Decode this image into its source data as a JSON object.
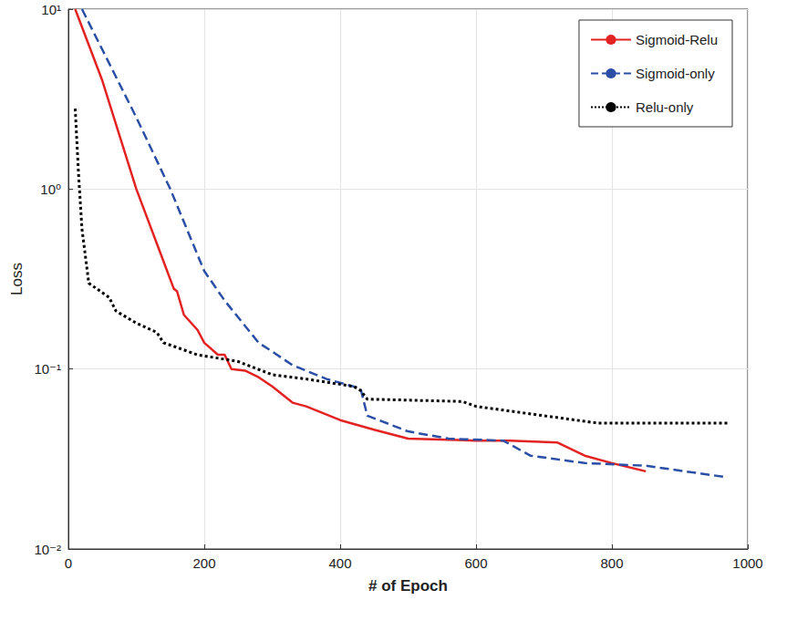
{
  "chart_data": {
    "type": "line",
    "x_label": "# of Epoch",
    "y_label": "Loss",
    "log": "y",
    "grid": true,
    "legend": "upper right",
    "xlim": [
      0,
      1000
    ],
    "xticks": [
      0,
      200,
      400,
      600,
      800,
      1000
    ],
    "ylim": [
      0.01,
      10
    ],
    "yticks": [
      {
        "value": 0.01,
        "label": "10⁻²"
      },
      {
        "value": 0.1,
        "label": "10⁻¹"
      },
      {
        "value": 1,
        "label": "10⁰"
      },
      {
        "value": 10,
        "label": "10¹"
      }
    ],
    "series": [
      {
        "name": "Sigmoid-Relu",
        "color": "#e32222",
        "line_style": "solid",
        "x": [
          10,
          50,
          100,
          130,
          155,
          160,
          170,
          190,
          200,
          220,
          230,
          240,
          260,
          280,
          300,
          330,
          350,
          400,
          450,
          500,
          600,
          650,
          720,
          760,
          800,
          850
        ],
        "values": [
          10,
          4,
          1.0,
          0.5,
          0.28,
          0.27,
          0.2,
          0.165,
          0.14,
          0.12,
          0.12,
          0.1,
          0.098,
          0.09,
          0.08,
          0.065,
          0.062,
          0.052,
          0.046,
          0.041,
          0.04,
          0.04,
          0.039,
          0.033,
          0.03,
          0.027
        ]
      },
      {
        "name": "Sigmoid-only",
        "color": "#2b4fa6",
        "line_style": "dashed",
        "x": [
          20,
          60,
          100,
          150,
          200,
          230,
          280,
          300,
          330,
          380,
          430,
          440,
          500,
          560,
          640,
          680,
          760,
          850,
          970
        ],
        "values": [
          10,
          5,
          2.5,
          1.0,
          0.35,
          0.24,
          0.14,
          0.125,
          0.105,
          0.088,
          0.078,
          0.055,
          0.045,
          0.041,
          0.04,
          0.033,
          0.03,
          0.029,
          0.025
        ]
      },
      {
        "name": "Relu-only",
        "color": "#000000",
        "line_style": "dotted",
        "x": [
          10,
          15,
          20,
          30,
          60,
          70,
          100,
          130,
          140,
          190,
          250,
          300,
          350,
          420,
          430,
          440,
          580,
          600,
          700,
          780,
          970
        ],
        "values": [
          2.8,
          1.2,
          0.6,
          0.3,
          0.25,
          0.21,
          0.18,
          0.16,
          0.14,
          0.12,
          0.11,
          0.093,
          0.088,
          0.08,
          0.076,
          0.068,
          0.066,
          0.062,
          0.055,
          0.05,
          0.05
        ]
      }
    ]
  }
}
